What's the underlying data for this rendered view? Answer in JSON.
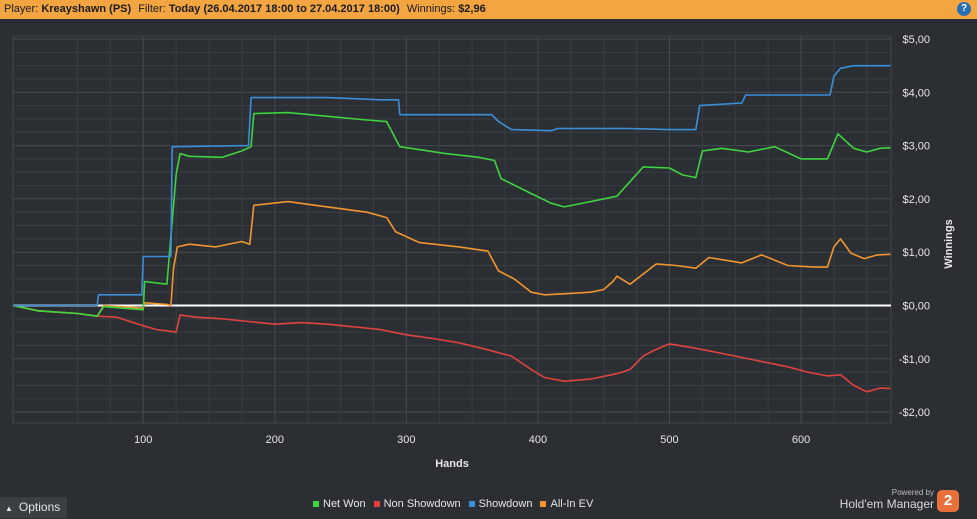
{
  "header": {
    "player_label": "Player:",
    "player": "Kreayshawn (PS)",
    "filter_label": "Filter:",
    "filter": "Today (26.04.2017 18:00 to 27.04.2017 18:00)",
    "winnings_label": "Winnings:",
    "winnings": "$2,96",
    "help_icon": "?"
  },
  "footer": {
    "options_label": "Options",
    "powered_by": "Powered by",
    "brand": "Hold'em Manager",
    "logo_text": "2"
  },
  "colors": {
    "net_won": "#3fd33f",
    "non_showdown": "#e0433f",
    "showdown": "#3b8fd9",
    "all_in_ev": "#f0952f",
    "header_bg": "#f2a541",
    "background": "#2b2f33"
  },
  "chart_data": {
    "type": "line",
    "xlabel": "Hands",
    "ylabel": "Winnings",
    "xlim": [
      1,
      668
    ],
    "ylim": [
      -2.2,
      5.2
    ],
    "xticks": [
      100,
      200,
      300,
      400,
      500,
      600
    ],
    "xtick_labels": [
      "100",
      "200",
      "300",
      "400",
      "500",
      "600"
    ],
    "yticks": [
      5,
      4,
      3,
      2,
      1,
      0,
      -1,
      -2
    ],
    "ytick_labels": [
      "$5,00",
      "$4,00",
      "$3,00",
      "$2,00",
      "$1,00",
      "$0,00",
      "-$1,00",
      "-$2,00"
    ],
    "grid": true,
    "legend_position": "bottom",
    "series": [
      {
        "name": "Net Won",
        "color": "#3fd33f",
        "points": [
          [
            1,
            0
          ],
          [
            20,
            -0.1
          ],
          [
            50,
            -0.15
          ],
          [
            65,
            -0.2
          ],
          [
            70,
            -0.02
          ],
          [
            100,
            -0.08
          ],
          [
            101,
            0.45
          ],
          [
            118,
            0.4
          ],
          [
            125,
            2.45
          ],
          [
            128,
            2.85
          ],
          [
            135,
            2.8
          ],
          [
            160,
            2.78
          ],
          [
            175,
            2.9
          ],
          [
            182,
            2.98
          ],
          [
            184,
            3.6
          ],
          [
            210,
            3.62
          ],
          [
            240,
            3.55
          ],
          [
            270,
            3.48
          ],
          [
            285,
            3.45
          ],
          [
            295,
            2.98
          ],
          [
            330,
            2.85
          ],
          [
            355,
            2.78
          ],
          [
            367,
            2.72
          ],
          [
            372,
            2.38
          ],
          [
            395,
            2.1
          ],
          [
            410,
            1.92
          ],
          [
            420,
            1.85
          ],
          [
            440,
            1.95
          ],
          [
            460,
            2.05
          ],
          [
            480,
            2.6
          ],
          [
            500,
            2.58
          ],
          [
            510,
            2.45
          ],
          [
            520,
            2.4
          ],
          [
            525,
            2.9
          ],
          [
            540,
            2.95
          ],
          [
            560,
            2.88
          ],
          [
            580,
            2.98
          ],
          [
            600,
            2.75
          ],
          [
            620,
            2.75
          ],
          [
            628,
            3.22
          ],
          [
            640,
            2.95
          ],
          [
            650,
            2.88
          ],
          [
            660,
            2.95
          ],
          [
            668,
            2.96
          ]
        ]
      },
      {
        "name": "Non Showdown",
        "color": "#e0433f",
        "points": [
          [
            1,
            0
          ],
          [
            20,
            -0.1
          ],
          [
            50,
            -0.15
          ],
          [
            65,
            -0.2
          ],
          [
            80,
            -0.22
          ],
          [
            100,
            -0.38
          ],
          [
            110,
            -0.45
          ],
          [
            125,
            -0.5
          ],
          [
            128,
            -0.18
          ],
          [
            140,
            -0.22
          ],
          [
            160,
            -0.25
          ],
          [
            180,
            -0.3
          ],
          [
            200,
            -0.35
          ],
          [
            220,
            -0.32
          ],
          [
            240,
            -0.35
          ],
          [
            260,
            -0.4
          ],
          [
            280,
            -0.45
          ],
          [
            300,
            -0.55
          ],
          [
            320,
            -0.62
          ],
          [
            340,
            -0.7
          ],
          [
            360,
            -0.82
          ],
          [
            380,
            -0.95
          ],
          [
            395,
            -1.2
          ],
          [
            405,
            -1.35
          ],
          [
            420,
            -1.42
          ],
          [
            440,
            -1.38
          ],
          [
            460,
            -1.28
          ],
          [
            470,
            -1.2
          ],
          [
            480,
            -0.95
          ],
          [
            490,
            -0.82
          ],
          [
            500,
            -0.72
          ],
          [
            515,
            -0.78
          ],
          [
            530,
            -0.85
          ],
          [
            550,
            -0.95
          ],
          [
            570,
            -1.05
          ],
          [
            590,
            -1.15
          ],
          [
            605,
            -1.25
          ],
          [
            620,
            -1.32
          ],
          [
            630,
            -1.3
          ],
          [
            640,
            -1.5
          ],
          [
            650,
            -1.62
          ],
          [
            660,
            -1.55
          ],
          [
            668,
            -1.56
          ]
        ]
      },
      {
        "name": "Showdown",
        "color": "#3b8fd9",
        "points": [
          [
            1,
            0
          ],
          [
            65,
            0
          ],
          [
            66,
            0.2
          ],
          [
            99,
            0.2
          ],
          [
            100,
            0.92
          ],
          [
            121,
            0.92
          ],
          [
            122,
            2.98
          ],
          [
            180,
            3.0
          ],
          [
            182,
            3.9
          ],
          [
            240,
            3.9
          ],
          [
            280,
            3.86
          ],
          [
            294,
            3.86
          ],
          [
            295,
            3.58
          ],
          [
            365,
            3.58
          ],
          [
            370,
            3.45
          ],
          [
            380,
            3.3
          ],
          [
            410,
            3.28
          ],
          [
            415,
            3.32
          ],
          [
            470,
            3.32
          ],
          [
            500,
            3.3
          ],
          [
            520,
            3.3
          ],
          [
            523,
            3.75
          ],
          [
            555,
            3.8
          ],
          [
            558,
            3.95
          ],
          [
            610,
            3.95
          ],
          [
            622,
            3.95
          ],
          [
            625,
            4.3
          ],
          [
            630,
            4.45
          ],
          [
            640,
            4.5
          ],
          [
            668,
            4.5
          ]
        ]
      },
      {
        "name": "All-In EV",
        "color": "#f0952f",
        "points": [
          [
            1,
            0
          ],
          [
            20,
            -0.1
          ],
          [
            50,
            -0.15
          ],
          [
            65,
            -0.2
          ],
          [
            70,
            0.0
          ],
          [
            100,
            -0.05
          ],
          [
            101,
            0.05
          ],
          [
            118,
            0.02
          ],
          [
            121,
            0.0
          ],
          [
            123,
            0.7
          ],
          [
            126,
            1.1
          ],
          [
            135,
            1.15
          ],
          [
            155,
            1.1
          ],
          [
            175,
            1.2
          ],
          [
            181,
            1.15
          ],
          [
            184,
            1.88
          ],
          [
            210,
            1.95
          ],
          [
            240,
            1.85
          ],
          [
            270,
            1.75
          ],
          [
            285,
            1.65
          ],
          [
            292,
            1.38
          ],
          [
            310,
            1.18
          ],
          [
            340,
            1.1
          ],
          [
            362,
            1.02
          ],
          [
            370,
            0.65
          ],
          [
            382,
            0.5
          ],
          [
            395,
            0.25
          ],
          [
            405,
            0.2
          ],
          [
            420,
            0.22
          ],
          [
            440,
            0.25
          ],
          [
            450,
            0.3
          ],
          [
            457,
            0.45
          ],
          [
            460,
            0.55
          ],
          [
            470,
            0.4
          ],
          [
            490,
            0.78
          ],
          [
            505,
            0.75
          ],
          [
            520,
            0.7
          ],
          [
            530,
            0.9
          ],
          [
            555,
            0.8
          ],
          [
            570,
            0.95
          ],
          [
            590,
            0.75
          ],
          [
            610,
            0.72
          ],
          [
            620,
            0.72
          ],
          [
            625,
            1.1
          ],
          [
            630,
            1.25
          ],
          [
            638,
            0.98
          ],
          [
            648,
            0.88
          ],
          [
            658,
            0.95
          ],
          [
            668,
            0.96
          ]
        ]
      }
    ]
  }
}
